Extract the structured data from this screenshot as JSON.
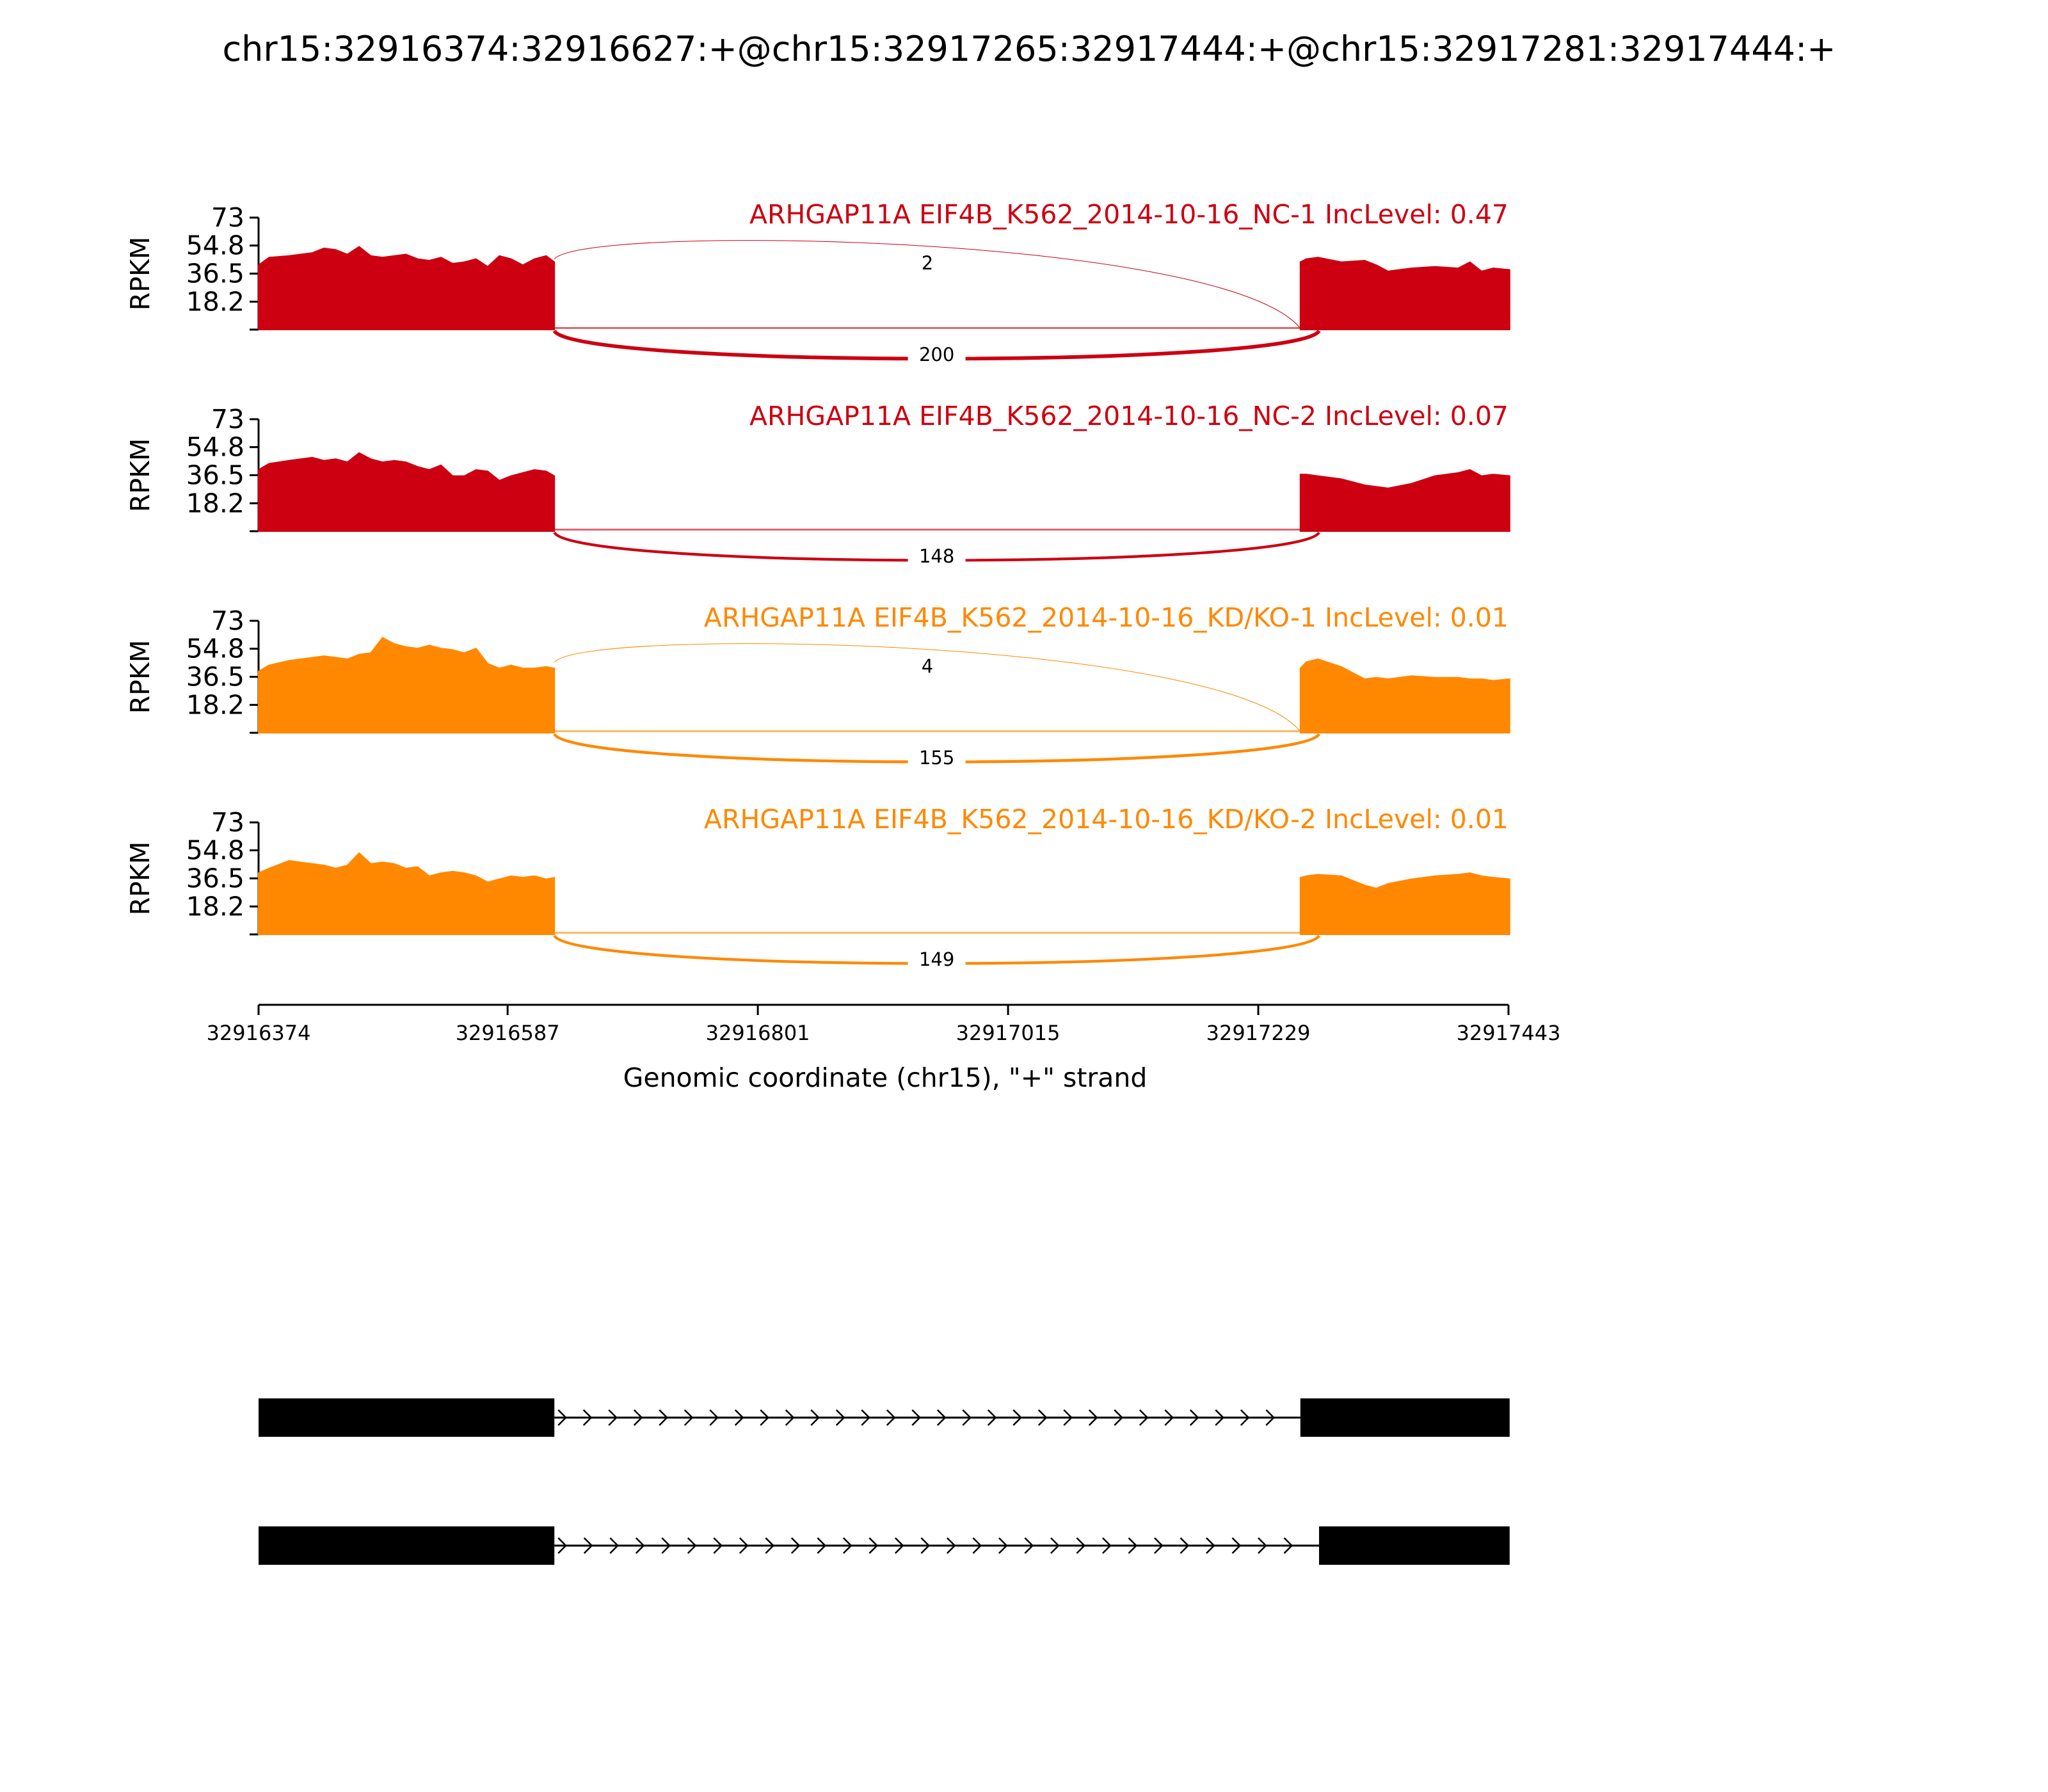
{
  "chart_data": {
    "type": "area",
    "title": "chr15:32916374:32916627:+@chr15:32917265:32917444:+@chr15:32917281:32917444:+",
    "xlabel": "Genomic coordinate (chr15), \"+\" strand",
    "ylabel": "RPKM",
    "xlim": [
      32916374,
      32917443
    ],
    "ylim": [
      0,
      73
    ],
    "x_ticks": [
      "32916374",
      "32916587",
      "32916801",
      "32917015",
      "32917229",
      "32917443"
    ],
    "y_ticks": [
      "73",
      "54.8",
      "36.5",
      "18.2"
    ],
    "exons": [
      {
        "start": 32916374,
        "end": 32916627
      },
      {
        "start": 32917265,
        "end": 32917444
      }
    ],
    "series": [
      {
        "name": "ARHGAP11A EIF4B_K562_2014-10-16_NC-1 IncLevel: 0.47",
        "color": "#CC0011",
        "coverage_x": [
          32916374,
          32916383,
          32916400,
          32916420,
          32916430,
          32916440,
          32916450,
          32916460,
          32916470,
          32916480,
          32916490,
          32916500,
          32916510,
          32916520,
          32916530,
          32916540,
          32916550,
          32916560,
          32916570,
          32916580,
          32916590,
          32916600,
          32916610,
          32916620,
          32916627,
          32917265,
          32917270,
          32917280,
          32917300,
          32917320,
          32917330,
          32917340,
          32917360,
          32917380,
          32917400,
          32917410,
          32917420,
          32917430,
          32917444
        ],
        "coverage_y": [
          42,
          47,
          48,
          50,
          53,
          52,
          49,
          54,
          48,
          47,
          48,
          49,
          46,
          45,
          47,
          43,
          44,
          46,
          41,
          48,
          46,
          42,
          46,
          48,
          44,
          44,
          46,
          47,
          44,
          45,
          42,
          38,
          40,
          41,
          40,
          44,
          38,
          40,
          39
        ],
        "junctions": [
          {
            "from": 32916627,
            "to": 32917265,
            "count": "2",
            "side": "above"
          },
          {
            "from": 32916627,
            "to": 32917281,
            "count": "200",
            "side": "below"
          }
        ]
      },
      {
        "name": "ARHGAP11A EIF4B_K562_2014-10-16_NC-2 IncLevel: 0.07",
        "color": "#CC0011",
        "coverage_x": [
          32916374,
          32916383,
          32916400,
          32916420,
          32916430,
          32916440,
          32916450,
          32916460,
          32916470,
          32916480,
          32916490,
          32916500,
          32916510,
          32916520,
          32916530,
          32916540,
          32916550,
          32916560,
          32916570,
          32916580,
          32916590,
          32916600,
          32916610,
          32916620,
          32916627,
          32917265,
          32917270,
          32917280,
          32917300,
          32917320,
          32917330,
          32917340,
          32917360,
          32917380,
          32917400,
          32917410,
          32917420,
          32917430,
          32917444
        ],
        "coverage_y": [
          40,
          44,
          46,
          48,
          46,
          47,
          45,
          51,
          47,
          45,
          46,
          45,
          42,
          40,
          43,
          36,
          36,
          40,
          39,
          33,
          36,
          38,
          40,
          39,
          36,
          37,
          37,
          36,
          34,
          30,
          29,
          28,
          31,
          36,
          38,
          40,
          36,
          37,
          36
        ],
        "junctions": [
          {
            "from": 32916627,
            "to": 32917281,
            "count": "148",
            "side": "below"
          }
        ]
      },
      {
        "name": "ARHGAP11A EIF4B_K562_2014-10-16_KD/KO-1 IncLevel: 0.01",
        "color": "#FF8800",
        "coverage_x": [
          32916374,
          32916383,
          32916400,
          32916420,
          32916430,
          32916440,
          32916450,
          32916460,
          32916470,
          32916480,
          32916490,
          32916500,
          32916510,
          32916520,
          32916530,
          32916540,
          32916550,
          32916560,
          32916570,
          32916580,
          32916590,
          32916600,
          32916610,
          32916620,
          32916627,
          32917265,
          32917270,
          32917280,
          32917300,
          32917320,
          32917330,
          32917340,
          32917360,
          32917380,
          32917400,
          32917410,
          32917420,
          32917430,
          32917444
        ],
        "coverage_y": [
          40,
          44,
          47,
          49,
          50,
          49,
          48,
          51,
          52,
          62,
          58,
          56,
          55,
          57,
          55,
          54,
          52,
          55,
          45,
          42,
          44,
          42,
          42,
          43,
          42,
          42,
          46,
          48,
          43,
          35,
          36,
          35,
          37,
          36,
          36,
          35,
          35,
          34,
          35
        ],
        "junctions": [
          {
            "from": 32916627,
            "to": 32917265,
            "count": "4",
            "side": "above"
          },
          {
            "from": 32916627,
            "to": 32917281,
            "count": "155",
            "side": "below"
          }
        ]
      },
      {
        "name": "ARHGAP11A EIF4B_K562_2014-10-16_KD/KO-2 IncLevel: 0.01",
        "color": "#FF8800",
        "coverage_x": [
          32916374,
          32916383,
          32916400,
          32916420,
          32916430,
          32916440,
          32916450,
          32916460,
          32916470,
          32916480,
          32916490,
          32916500,
          32916510,
          32916520,
          32916530,
          32916540,
          32916550,
          32916560,
          32916570,
          32916580,
          32916590,
          32916600,
          32916610,
          32916620,
          32916627,
          32917265,
          32917270,
          32917280,
          32917300,
          32917320,
          32917330,
          32917340,
          32917360,
          32917380,
          32917400,
          32917410,
          32917420,
          32917430,
          32917444
        ],
        "coverage_y": [
          40,
          43,
          48,
          46,
          45,
          43,
          45,
          53,
          46,
          47,
          46,
          43,
          44,
          38,
          40,
          41,
          40,
          38,
          34,
          36,
          38,
          37,
          38,
          36,
          37,
          37,
          38,
          39,
          38,
          32,
          30,
          33,
          36,
          38,
          39,
          40,
          38,
          37,
          36
        ],
        "junctions": [
          {
            "from": 32916627,
            "to": 32917281,
            "count": "149",
            "side": "below"
          }
        ]
      }
    ],
    "isoforms": [
      {
        "exons": [
          [
            32916374,
            32916627
          ],
          [
            32917265,
            32917444
          ]
        ]
      },
      {
        "exons": [
          [
            32916374,
            32916627
          ],
          [
            32917281,
            32917444
          ]
        ]
      }
    ]
  }
}
